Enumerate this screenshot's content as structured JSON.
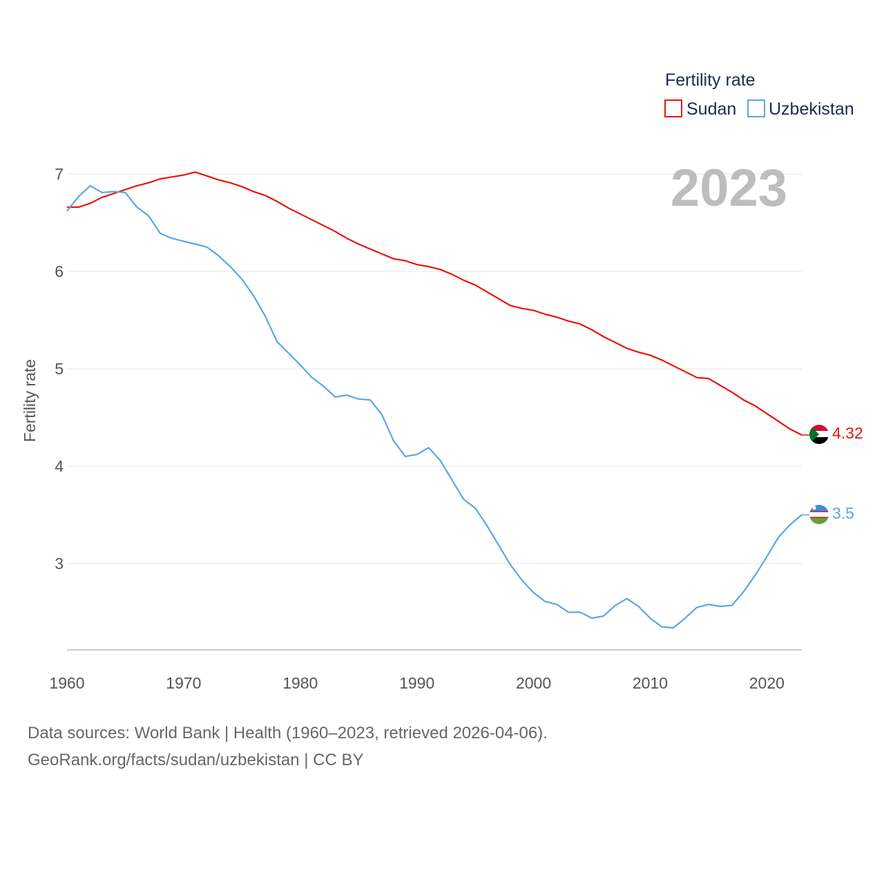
{
  "legend": {
    "title": "Fertility rate",
    "items": [
      {
        "name": "Sudan",
        "color": "#e8150c"
      },
      {
        "name": "Uzbekistan",
        "color": "#5aa5e8"
      }
    ]
  },
  "year_label": "2023",
  "footer": {
    "line1": "Data sources: World Bank | Health (1960–2023, retrieved 2026-04-06).",
    "line2": "GeoRank.org/facts/sudan/uzbekistan | CC BY"
  },
  "chart_data": {
    "type": "line",
    "title": "Fertility rate",
    "xlabel": "",
    "ylabel": "Fertility rate",
    "xlim": [
      1960,
      2023
    ],
    "ylim": [
      2.1,
      7.1
    ],
    "x_ticks": [
      1960,
      1970,
      1980,
      1990,
      2000,
      2010,
      2020
    ],
    "y_ticks": [
      3,
      4,
      5,
      6,
      7
    ],
    "grid": true,
    "legend_position": "top-right",
    "x": [
      1960,
      1961,
      1962,
      1963,
      1964,
      1965,
      1966,
      1967,
      1968,
      1969,
      1970,
      1971,
      1972,
      1973,
      1974,
      1975,
      1976,
      1977,
      1978,
      1979,
      1980,
      1981,
      1982,
      1983,
      1984,
      1985,
      1986,
      1987,
      1988,
      1989,
      1990,
      1991,
      1992,
      1993,
      1994,
      1995,
      1996,
      1997,
      1998,
      1999,
      2000,
      2001,
      2002,
      2003,
      2004,
      2005,
      2006,
      2007,
      2008,
      2009,
      2010,
      2011,
      2012,
      2013,
      2014,
      2015,
      2016,
      2017,
      2018,
      2019,
      2020,
      2021,
      2022,
      2023
    ],
    "series": [
      {
        "name": "Sudan",
        "color": "#e8150c",
        "end_label": "4.32",
        "values": [
          6.66,
          6.66,
          6.7,
          6.76,
          6.8,
          6.84,
          6.88,
          6.91,
          6.95,
          6.97,
          6.99,
          7.02,
          6.98,
          6.94,
          6.91,
          6.87,
          6.82,
          6.78,
          6.72,
          6.65,
          6.59,
          6.53,
          6.47,
          6.41,
          6.34,
          6.28,
          6.23,
          6.18,
          6.13,
          6.11,
          6.07,
          6.05,
          6.02,
          5.97,
          5.91,
          5.86,
          5.79,
          5.72,
          5.65,
          5.62,
          5.6,
          5.56,
          5.53,
          5.49,
          5.46,
          5.4,
          5.33,
          5.27,
          5.21,
          5.17,
          5.14,
          5.09,
          5.03,
          4.97,
          4.91,
          4.9,
          4.83,
          4.76,
          4.68,
          4.62,
          4.54,
          4.46,
          4.38,
          4.32
        ]
      },
      {
        "name": "Uzbekistan",
        "color": "#5aa5e8",
        "end_label": "3.5",
        "values": [
          6.62,
          6.77,
          6.88,
          6.81,
          6.82,
          6.81,
          6.66,
          6.57,
          6.39,
          6.34,
          6.31,
          6.28,
          6.25,
          6.16,
          6.05,
          5.92,
          5.75,
          5.54,
          5.28,
          5.16,
          5.04,
          4.91,
          4.82,
          4.71,
          4.73,
          4.69,
          4.68,
          4.53,
          4.26,
          4.1,
          4.12,
          4.19,
          4.06,
          3.86,
          3.66,
          3.57,
          3.39,
          3.19,
          2.99,
          2.83,
          2.7,
          2.61,
          2.58,
          2.5,
          2.5,
          2.44,
          2.46,
          2.57,
          2.64,
          2.56,
          2.44,
          2.35,
          2.34,
          2.44,
          2.55,
          2.58,
          2.56,
          2.57,
          2.71,
          2.88,
          3.07,
          3.27,
          3.4,
          3.5
        ]
      }
    ]
  }
}
